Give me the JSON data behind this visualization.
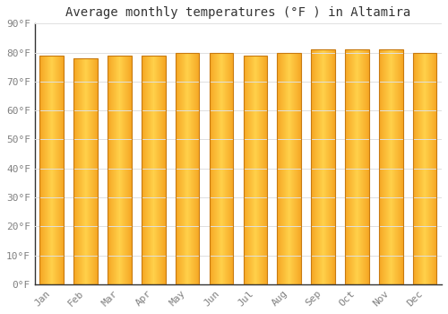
{
  "title": "Average monthly temperatures (°F ) in Altamira",
  "months": [
    "Jan",
    "Feb",
    "Mar",
    "Apr",
    "May",
    "Jun",
    "Jul",
    "Aug",
    "Sep",
    "Oct",
    "Nov",
    "Dec"
  ],
  "values": [
    79,
    78,
    79,
    79,
    80,
    80,
    79,
    80,
    81,
    81,
    81,
    80
  ],
  "ylim": [
    0,
    90
  ],
  "yticks": [
    0,
    10,
    20,
    30,
    40,
    50,
    60,
    70,
    80,
    90
  ],
  "ytick_labels": [
    "0°F",
    "10°F",
    "20°F",
    "30°F",
    "40°F",
    "50°F",
    "60°F",
    "70°F",
    "80°F",
    "90°F"
  ],
  "bar_color_left": "#F5A623",
  "bar_color_center": "#FFD04A",
  "bar_edge_color": "#C87A10",
  "background_color": "#FFFFFF",
  "plot_bg_color": "#FFFFFF",
  "grid_color": "#E0E0E0",
  "title_fontsize": 10,
  "tick_fontsize": 8,
  "font_family": "monospace",
  "bar_width": 0.7
}
